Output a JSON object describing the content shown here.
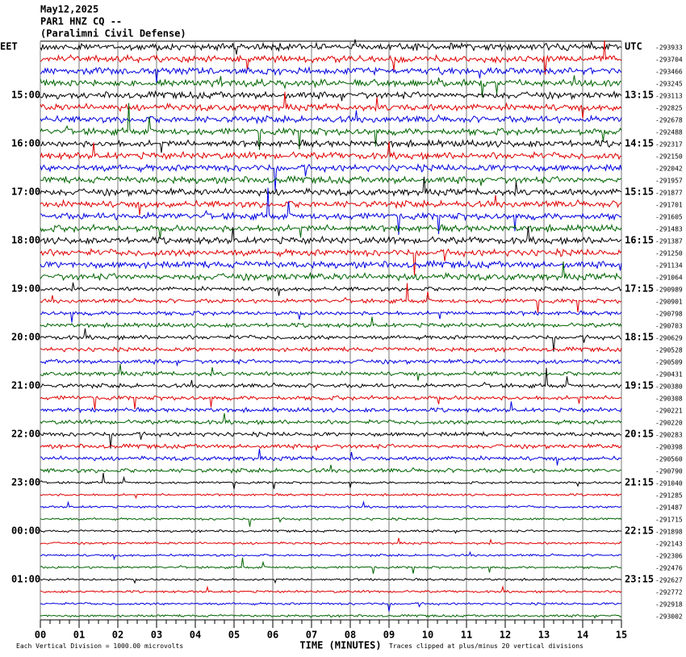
{
  "header": {
    "lines": [
      "May12,2025",
      "PAR1 HNZ CQ --",
      "(Paralimni Civil Defense)"
    ]
  },
  "left_labels": [
    "EET",
    null,
    null,
    null,
    "15:00",
    null,
    null,
    null,
    "16:00",
    null,
    null,
    null,
    "17:00",
    null,
    null,
    null,
    "18:00",
    null,
    null,
    null,
    "19:00",
    null,
    null,
    null,
    "20:00",
    null,
    null,
    null,
    "21:00",
    null,
    null,
    null,
    "22:00",
    null,
    null,
    null,
    "23:00",
    null,
    null,
    null,
    "00:00",
    null,
    null,
    null,
    "01:00",
    null,
    null,
    null
  ],
  "right_labels": [
    "UTC",
    null,
    null,
    null,
    "13:15",
    null,
    null,
    null,
    "14:15",
    null,
    null,
    null,
    "15:15",
    null,
    null,
    null,
    "16:15",
    null,
    null,
    null,
    "17:15",
    null,
    null,
    null,
    "18:15",
    null,
    null,
    null,
    "19:15",
    null,
    null,
    null,
    "20:15",
    null,
    null,
    null,
    "21:15",
    null,
    null,
    null,
    "22:15",
    null,
    null,
    null,
    "23:15",
    null,
    null,
    null
  ],
  "offsets": [
    "-293933",
    "-293704",
    "-293466",
    "-293245",
    "-293113",
    "-292825",
    "-292678",
    "-292488",
    "-292317",
    "-292150",
    "-292042",
    "-291957",
    "-291877",
    "-291701",
    "-291605",
    "-291483",
    "-291387",
    "-291250",
    "-291134",
    "-291064",
    "-290989",
    "-290901",
    "-290798",
    "-290703",
    "-290629",
    "-290528",
    "-290509",
    "-290431",
    "-290380",
    "-290308",
    "-290221",
    "-290220",
    "-290283",
    "-290398",
    "-290560",
    "-290790",
    "-291040",
    "-291285",
    "-291487",
    "-291715",
    "-291898",
    "-292143",
    "-292306",
    "-292476",
    "-292627",
    "-292772",
    "-292918",
    "-293002"
  ],
  "trace_colors": [
    "#000000",
    "#e00000",
    "#0000e0",
    "#006400"
  ],
  "x_axis": {
    "ticks": [
      "00",
      "01",
      "02",
      "03",
      "04",
      "05",
      "06",
      "07",
      "08",
      "09",
      "10",
      "11",
      "12",
      "13",
      "14",
      "15"
    ],
    "title": "TIME (MINUTES)"
  },
  "footer": {
    "scale_note": "Each Vertical Division = 1000.00 microvolts",
    "clip_note": "Traces clipped at plus/minus 20 vertical divisions"
  }
}
